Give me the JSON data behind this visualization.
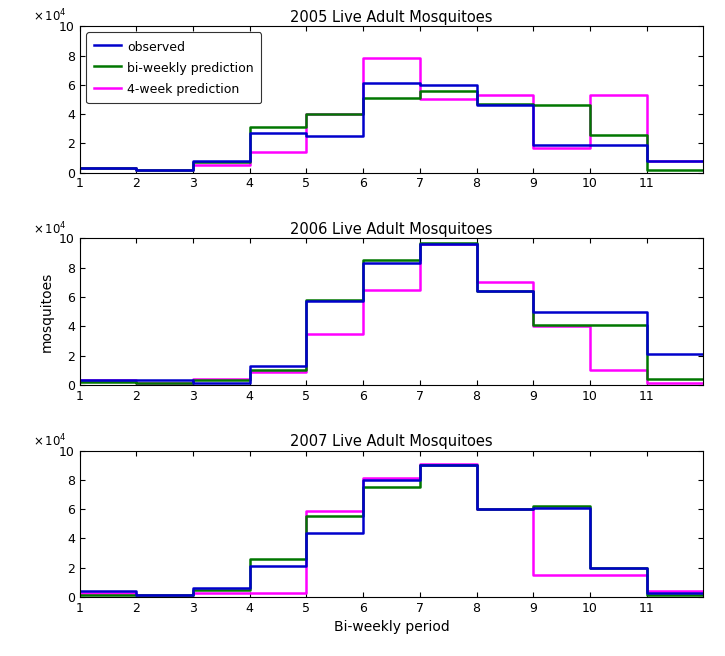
{
  "titles": [
    "2005 Live Adult Mosquitoes",
    "2006 Live Adult Mosquitoes",
    "2007 Live Adult Mosquitoes"
  ],
  "xlabel": "Bi-weekly period",
  "ylabel": "mosquitoes",
  "periods": [
    1,
    2,
    3,
    4,
    5,
    6,
    7,
    8,
    9,
    10,
    11
  ],
  "observed": [
    [
      3000,
      2000,
      8000,
      27000,
      25000,
      61000,
      60000,
      46000,
      19000,
      19000,
      8000
    ],
    [
      3000,
      3000,
      1000,
      13000,
      57000,
      83000,
      96000,
      64000,
      50000,
      50000,
      21000
    ],
    [
      4000,
      1000,
      6000,
      21000,
      44000,
      80000,
      90000,
      60000,
      61000,
      20000,
      3000
    ]
  ],
  "biweekly": [
    [
      3000,
      2000,
      7000,
      31000,
      40000,
      51000,
      56000,
      47000,
      46000,
      26000,
      2000
    ],
    [
      2000,
      1000,
      3000,
      10000,
      58000,
      85000,
      97000,
      64000,
      41000,
      41000,
      4000
    ],
    [
      1000,
      1000,
      5000,
      26000,
      55000,
      75000,
      90000,
      60000,
      62000,
      20000,
      1000
    ]
  ],
  "fourweek": [
    [
      3000,
      2000,
      5000,
      14000,
      40000,
      78000,
      50000,
      53000,
      17000,
      53000,
      8000
    ],
    [
      3000,
      1000,
      4000,
      9000,
      35000,
      65000,
      96000,
      70000,
      40000,
      10000,
      1000
    ],
    [
      3000,
      1000,
      3000,
      3000,
      59000,
      81000,
      91000,
      60000,
      15000,
      15000,
      4000
    ]
  ],
  "color_observed": "#0000cc",
  "color_biweekly": "#007700",
  "color_fourweek": "#ff00ff",
  "ylim": [
    0,
    100000
  ],
  "yticks": [
    0,
    20000,
    40000,
    60000,
    80000,
    100000
  ],
  "xticks": [
    1,
    2,
    3,
    4,
    5,
    6,
    7,
    8,
    9,
    10,
    11
  ],
  "xlim": [
    1,
    12
  ],
  "linewidth": 1.8,
  "legend_labels": [
    "observed",
    "bi-weekly prediction",
    "4-week prediction"
  ],
  "fig_width": 7.25,
  "fig_height": 6.56,
  "dpi": 100
}
